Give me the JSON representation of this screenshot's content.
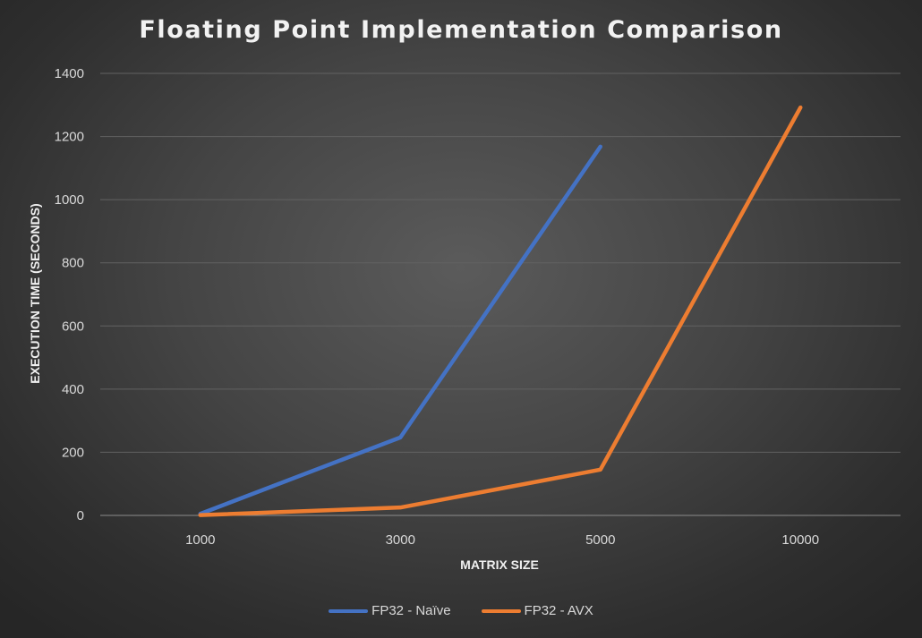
{
  "chart_data": {
    "type": "line",
    "title": "Floating Point Implementation Comparison",
    "xlabel": "MATRIX SIZE",
    "ylabel": "EXECUTION TIME (SECONDS)",
    "categories": [
      "1000",
      "3000",
      "5000",
      "10000"
    ],
    "ylim": [
      0,
      1400
    ],
    "yticks": [
      0,
      200,
      400,
      600,
      800,
      1000,
      1200,
      1400
    ],
    "grid": true,
    "legend_position": "bottom",
    "series": [
      {
        "name": "FP32 - Naïve",
        "color": "#4472c4",
        "values": [
          5,
          247,
          1168,
          null
        ]
      },
      {
        "name": "FP32 - AVX",
        "color": "#ed7d31",
        "values": [
          1,
          25,
          145,
          1292
        ]
      }
    ]
  }
}
